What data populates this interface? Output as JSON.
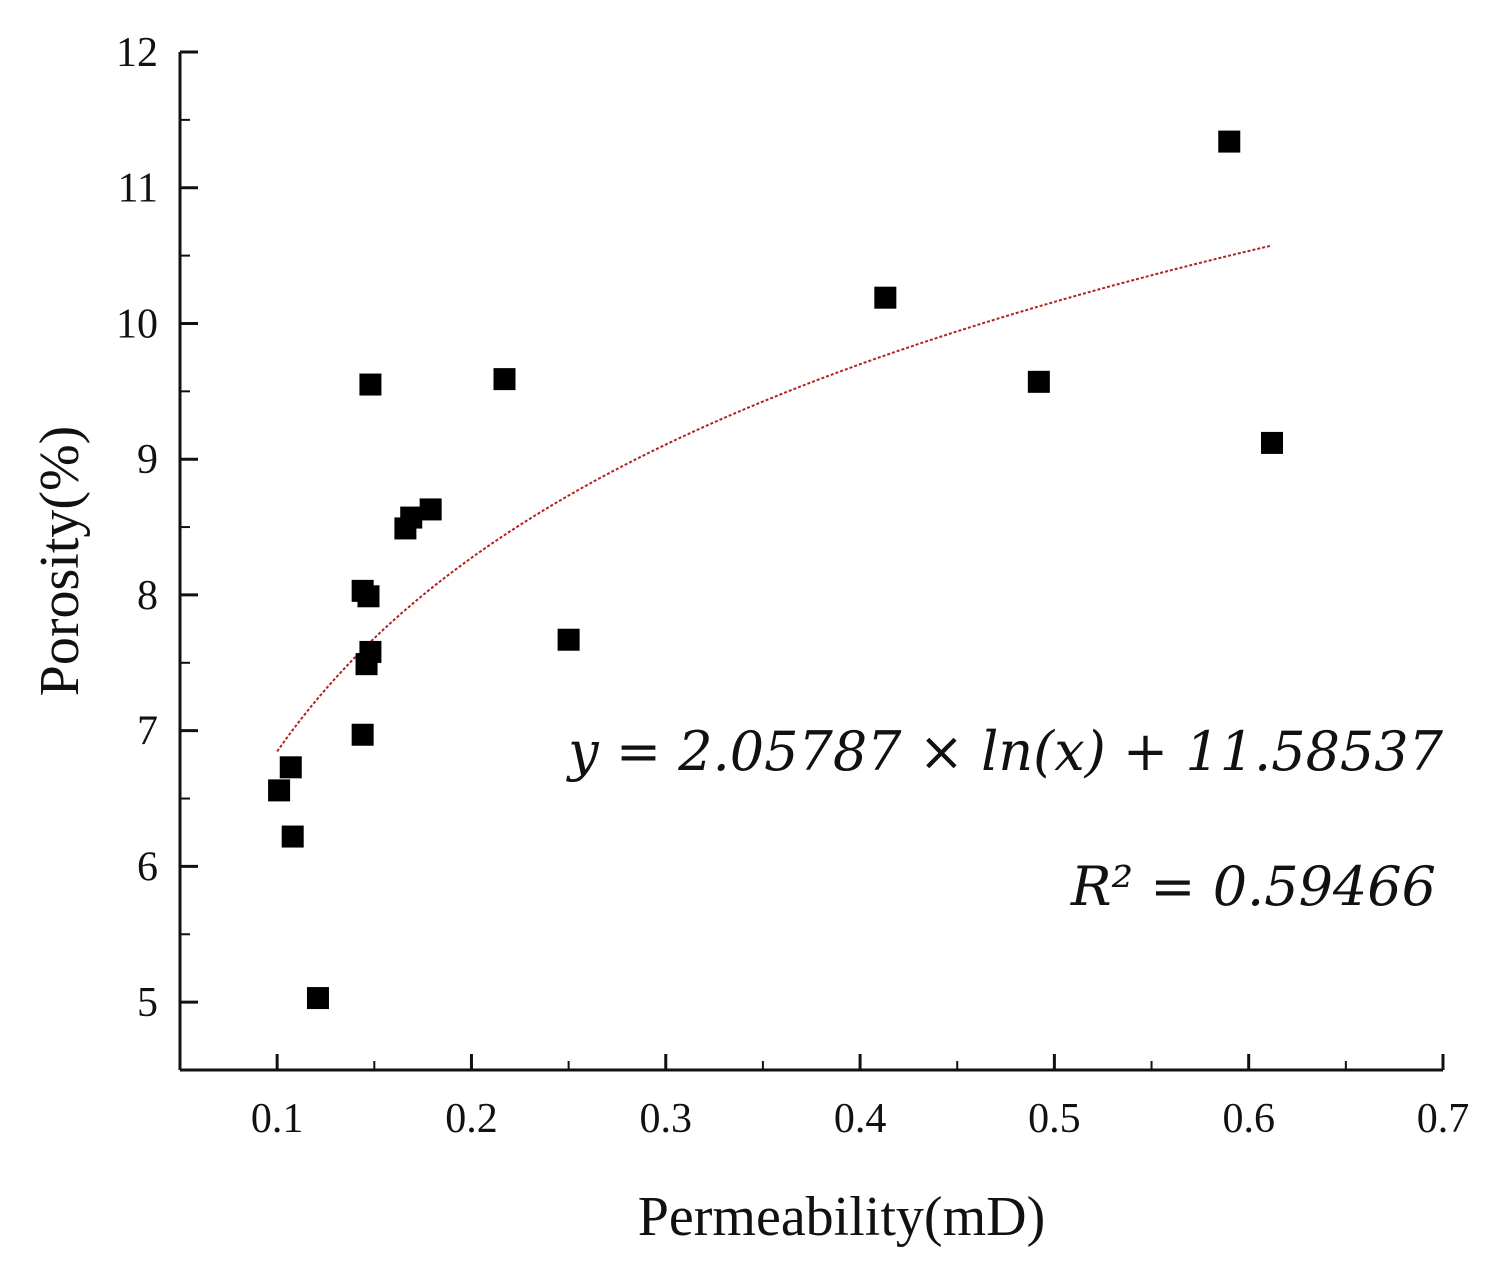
{
  "chart_data": {
    "type": "scatter",
    "xlabel": "Permeability(mD)",
    "ylabel": "Porosity(%)",
    "xlim": [
      0.05,
      0.7
    ],
    "ylim": [
      4.5,
      12
    ],
    "x_ticks": [
      0.1,
      0.2,
      0.3,
      0.4,
      0.5,
      0.6,
      0.7
    ],
    "x_tick_labels": [
      "0.1",
      "0.2",
      "0.3",
      "0.4",
      "0.5",
      "0.6",
      "0.7"
    ],
    "y_ticks": [
      5,
      6,
      7,
      8,
      9,
      10,
      11,
      12
    ],
    "y_tick_labels": [
      "5",
      "6",
      "7",
      "8",
      "9",
      "10",
      "11",
      "12"
    ],
    "grid": false,
    "series": [
      {
        "name": "samples",
        "marker": "square",
        "color": "#000000",
        "points": [
          {
            "x": 0.101,
            "y": 6.56
          },
          {
            "x": 0.107,
            "y": 6.73
          },
          {
            "x": 0.108,
            "y": 6.22
          },
          {
            "x": 0.121,
            "y": 5.03
          },
          {
            "x": 0.144,
            "y": 6.97
          },
          {
            "x": 0.144,
            "y": 8.03
          },
          {
            "x": 0.147,
            "y": 7.99
          },
          {
            "x": 0.148,
            "y": 7.58
          },
          {
            "x": 0.146,
            "y": 7.49
          },
          {
            "x": 0.148,
            "y": 9.55
          },
          {
            "x": 0.166,
            "y": 8.49
          },
          {
            "x": 0.169,
            "y": 8.57
          },
          {
            "x": 0.179,
            "y": 8.63
          },
          {
            "x": 0.217,
            "y": 9.59
          },
          {
            "x": 0.25,
            "y": 7.67
          },
          {
            "x": 0.413,
            "y": 10.19
          },
          {
            "x": 0.492,
            "y": 9.57
          },
          {
            "x": 0.59,
            "y": 11.34
          },
          {
            "x": 0.612,
            "y": 9.12
          }
        ]
      }
    ],
    "fit": {
      "type": "logarithmic",
      "a": 2.05787,
      "b": 11.58537,
      "x_range": [
        0.1,
        0.612
      ],
      "color": "#b22222"
    },
    "annotations": {
      "equation": "y = 2.05787 × ln(x) + 11.58537",
      "r_squared": "R² = 0.59466"
    }
  }
}
